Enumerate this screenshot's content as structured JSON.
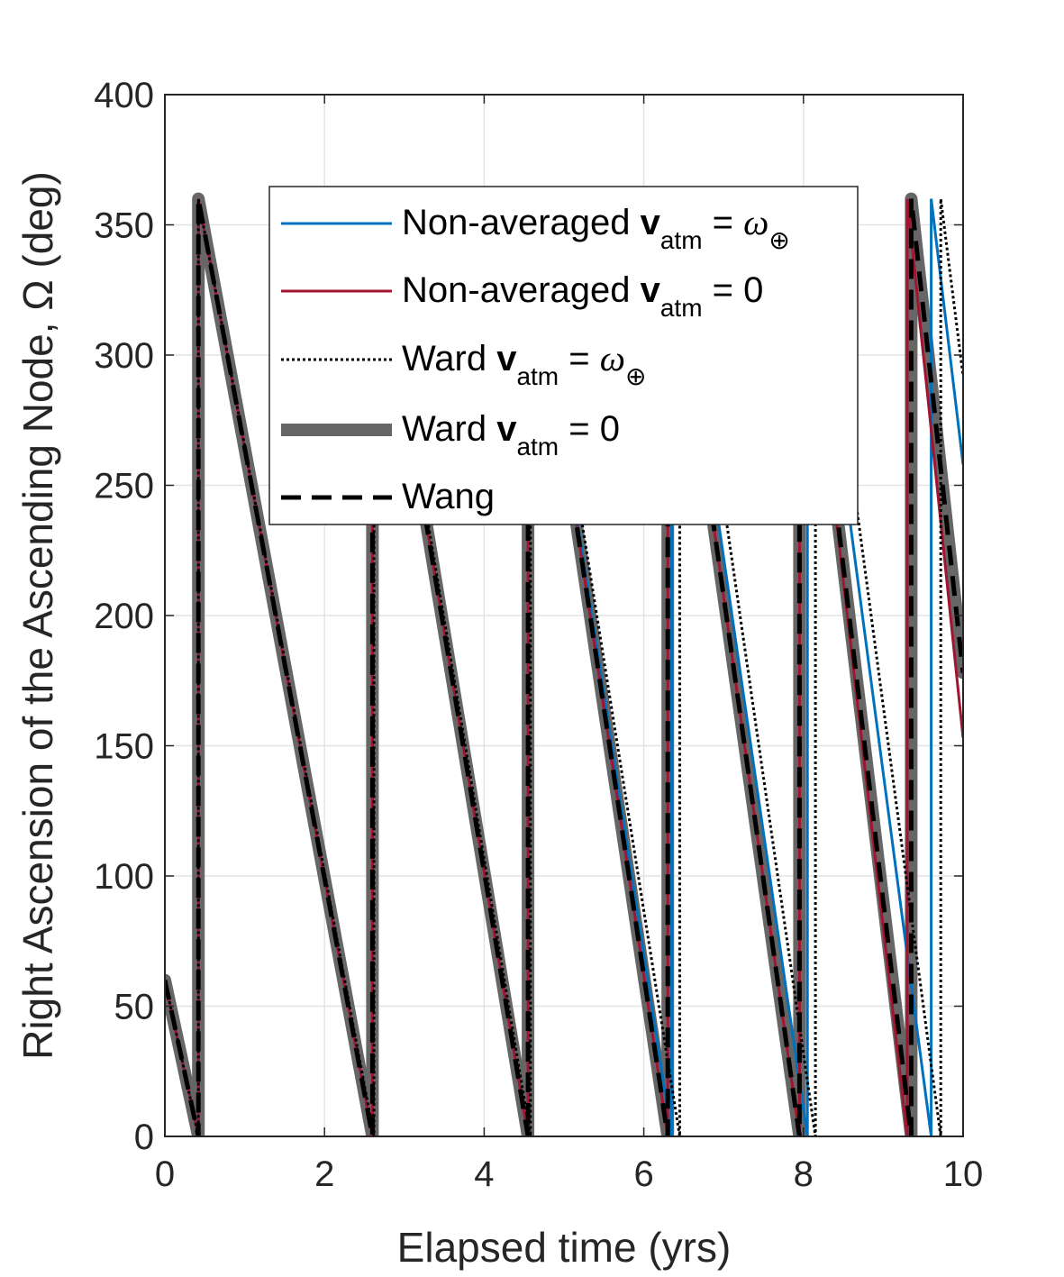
{
  "chart_data": {
    "type": "line",
    "title": "",
    "xlabel": "Elapsed time (yrs)",
    "ylabel": "Right Ascension of the Ascending Node, Ω (deg)",
    "xlim": [
      0,
      10
    ],
    "ylim": [
      0,
      400
    ],
    "xticks": [
      0,
      2,
      4,
      6,
      8,
      10
    ],
    "yticks": [
      0,
      50,
      100,
      150,
      200,
      250,
      300,
      350,
      400
    ],
    "grid": true,
    "legend_position": "top-center, inside",
    "series": [
      {
        "name": "Non-averaged v_atm = ω_⊕",
        "color": "#0072BD",
        "style": "solid-thin",
        "x": [
          0,
          0.42,
          0.42,
          2.6,
          2.6,
          4.55,
          4.55,
          6.35,
          6.35,
          8.05,
          8.05,
          9.6,
          9.6,
          10.0
        ],
        "y": [
          60,
          0,
          360,
          0,
          360,
          0,
          360,
          0,
          360,
          0,
          360,
          0,
          360,
          258
        ]
      },
      {
        "name": "Non-averaged v_atm = 0",
        "color": "#A2142F",
        "style": "solid-thin",
        "x": [
          0,
          0.42,
          0.42,
          2.6,
          2.6,
          4.55,
          4.55,
          6.3,
          6.3,
          7.95,
          7.95,
          9.3,
          9.3,
          10.0
        ],
        "y": [
          60,
          0,
          360,
          0,
          360,
          0,
          360,
          0,
          360,
          0,
          360,
          0,
          360,
          153
        ]
      },
      {
        "name": "Ward v_atm = ω_⊕",
        "color": "#000000",
        "style": "dotted",
        "x": [
          0,
          0.42,
          0.42,
          2.62,
          2.62,
          4.58,
          4.58,
          6.45,
          6.45,
          8.15,
          8.15,
          9.72,
          9.72,
          10.0
        ],
        "y": [
          60,
          0,
          360,
          0,
          360,
          0,
          360,
          0,
          360,
          0,
          360,
          0,
          360,
          292
        ]
      },
      {
        "name": "Ward v_atm = 0",
        "color": "#666666",
        "style": "solid-thick",
        "x": [
          0,
          0.42,
          0.42,
          2.6,
          2.6,
          4.55,
          4.55,
          6.3,
          6.3,
          7.95,
          7.95,
          9.35,
          9.35,
          10.0
        ],
        "y": [
          60,
          0,
          360,
          0,
          360,
          0,
          360,
          0,
          360,
          0,
          360,
          0,
          360,
          178
        ]
      },
      {
        "name": "Wang",
        "color": "#000000",
        "style": "dashed",
        "x": [
          0,
          0.42,
          0.42,
          2.6,
          2.6,
          4.55,
          4.55,
          6.3,
          6.3,
          7.95,
          7.95,
          9.35,
          9.35,
          10.0
        ],
        "y": [
          60,
          0,
          360,
          0,
          360,
          0,
          360,
          0,
          360,
          0,
          360,
          0,
          360,
          178
        ]
      }
    ],
    "legend": {
      "entries": [
        {
          "prefix": "Non-averaged ",
          "bold": "v",
          "sub": "atm",
          "mid": " = ",
          "sym": "ω",
          "symsub": "⊕"
        },
        {
          "prefix": "Non-averaged ",
          "bold": "v",
          "sub": "atm",
          "mid": " = 0",
          "sym": "",
          "symsub": ""
        },
        {
          "prefix": "Ward ",
          "bold": "v",
          "sub": "atm",
          "mid": " = ",
          "sym": "ω",
          "symsub": "⊕"
        },
        {
          "prefix": "Ward ",
          "bold": "v",
          "sub": "atm",
          "mid": " = 0",
          "sym": "",
          "symsub": ""
        },
        {
          "prefix": "Wang",
          "bold": "",
          "sub": "",
          "mid": "",
          "sym": "",
          "symsub": ""
        }
      ]
    }
  }
}
